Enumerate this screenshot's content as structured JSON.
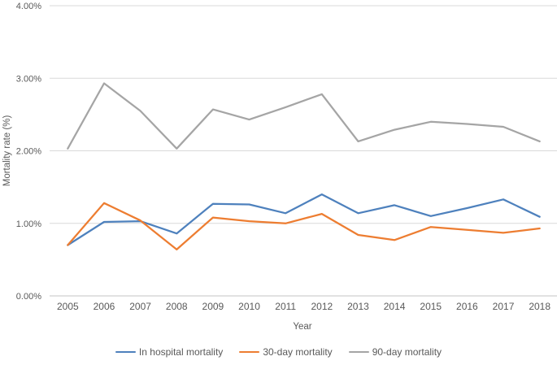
{
  "chart_data": {
    "type": "line",
    "title": "",
    "xlabel": "Year",
    "ylabel": "Mortality rate (%)",
    "categories": [
      "2005",
      "2006",
      "2007",
      "2008",
      "2009",
      "2010",
      "2011",
      "2012",
      "2013",
      "2014",
      "2015",
      "2016",
      "2017",
      "2018"
    ],
    "series": [
      {
        "name": "In hospital mortality",
        "color": "#4E81BD",
        "values": [
          0.7,
          1.02,
          1.03,
          0.86,
          1.27,
          1.26,
          1.14,
          1.4,
          1.14,
          1.25,
          1.1,
          1.21,
          1.33,
          1.09
        ]
      },
      {
        "name": "30-day mortality",
        "color": "#ED7D31",
        "values": [
          0.7,
          1.28,
          1.04,
          0.64,
          1.08,
          1.03,
          1.0,
          1.13,
          0.84,
          0.77,
          0.95,
          0.91,
          0.87,
          0.93
        ]
      },
      {
        "name": "90-day mortality",
        "color": "#A5A5A5",
        "values": [
          2.03,
          2.93,
          2.55,
          2.03,
          2.57,
          2.43,
          2.6,
          2.78,
          2.13,
          2.29,
          2.4,
          2.37,
          2.33,
          2.13
        ]
      }
    ],
    "ylim": [
      0,
      4
    ],
    "yticks": [
      "0.00%",
      "1.00%",
      "2.00%",
      "3.00%",
      "4.00%"
    ],
    "grid": true,
    "legend_position": "bottom"
  },
  "colors": {
    "background": "#FFFFFF",
    "gridline": "#D9D9D9",
    "axis_line": "#C6C6C6",
    "text": "#595959"
  }
}
